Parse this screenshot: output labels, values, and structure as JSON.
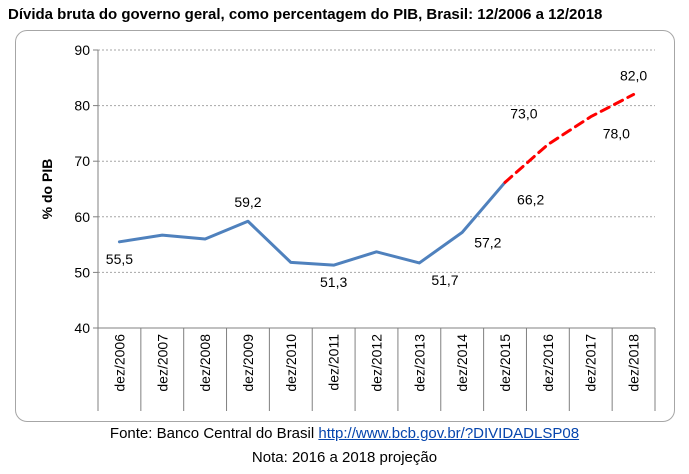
{
  "title": "Dívida bruta do governo geral, como percentagem do PIB, Brasil: 12/2006 a 12/2018",
  "source_prefix": "Fonte: Banco Central do Brasil",
  "source_link": "http://www.bcb.gov.br/?DIVIDADLSP08",
  "note": "Nota: 2016 a 2018 projeção",
  "colors": {
    "actual": "#4f81bd",
    "projection": "#ff0000",
    "grid": "#a6a6a6",
    "axis": "#808080"
  },
  "chart_data": {
    "type": "line",
    "ylabel": "% do PIB",
    "xlabel": "",
    "ylim": [
      40,
      90
    ],
    "yticks": [
      40,
      50,
      60,
      70,
      80,
      90
    ],
    "grid": true,
    "categories": [
      "dez/2006",
      "dez/2007",
      "dez/2008",
      "dez/2009",
      "dez/2010",
      "dez/2011",
      "dez/2012",
      "dez/2013",
      "dez/2014",
      "dez/2015",
      "dez/2016",
      "dez/2017",
      "dez/2018"
    ],
    "series": [
      {
        "style": "solid",
        "color": "#4f81bd",
        "values": [
          55.5,
          56.7,
          56.0,
          59.2,
          51.8,
          51.3,
          53.7,
          51.7,
          57.2,
          66.2,
          null,
          null,
          null
        ]
      },
      {
        "style": "dashed",
        "color": "#ff0000",
        "values": [
          null,
          null,
          null,
          null,
          null,
          null,
          null,
          null,
          null,
          66.2,
          73.0,
          78.0,
          82.0
        ]
      }
    ],
    "data_labels": [
      {
        "index": 0,
        "value": "55,5",
        "pos": "below"
      },
      {
        "index": 3,
        "value": "59,2",
        "pos": "above"
      },
      {
        "index": 5,
        "value": "51,3",
        "pos": "below"
      },
      {
        "index": 7,
        "value": "51,7",
        "pos": "right-below"
      },
      {
        "index": 8,
        "value": "57,2",
        "pos": "right"
      },
      {
        "index": 9,
        "value": "66,2",
        "pos": "right-below"
      },
      {
        "index": 10,
        "value": "73,0",
        "pos": "left-above"
      },
      {
        "index": 11,
        "value": "78,0",
        "pos": "right-below"
      },
      {
        "index": 12,
        "value": "82,0",
        "pos": "above"
      }
    ]
  }
}
